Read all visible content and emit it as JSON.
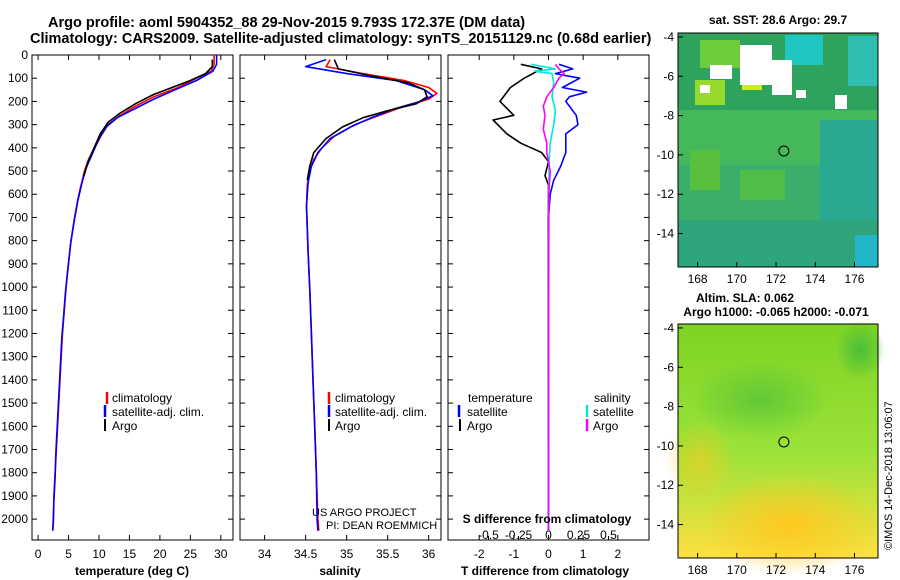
{
  "header": {
    "title_line1": "Argo profile: aoml 5904352_88 29-Nov-2015 9.793S 172.37E (DM data)",
    "title_line2": "Climatology: CARS2009. Satellite-adjusted climatology: synTS_20151129.nc (0.68d earlier)"
  },
  "credits": {
    "project": "US ARGO PROJECT",
    "pi": "PI: DEAN ROEMMICH",
    "imos": "©IMOS 14-Dec-2018 13:06:07"
  },
  "colors": {
    "climatology": "#ff0000",
    "satellite": "#0000ff",
    "argo": "#000000",
    "sal_satellite": "#00e5e5",
    "sal_argo": "#ff00ff"
  },
  "chart_data": [
    {
      "type": "line",
      "title": "",
      "xlabel": "temperature (deg C)",
      "ylabel": "",
      "xlim": [
        -1,
        32
      ],
      "ylim": [
        0,
        2090
      ],
      "x_ticks": [
        0,
        5,
        10,
        15,
        20,
        25,
        30
      ],
      "y_ticks": [
        0,
        100,
        200,
        300,
        400,
        500,
        600,
        700,
        800,
        900,
        1000,
        1100,
        1200,
        1300,
        1400,
        1500,
        1600,
        1700,
        1800,
        1900,
        2000
      ],
      "legend": [
        "climatology",
        "satellite-adj. clim.",
        "Argo"
      ],
      "series": [
        {
          "name": "climatology",
          "color": "#ff0000",
          "points": [
            [
              28.9,
              0
            ],
            [
              28.9,
              40
            ],
            [
              28.4,
              70
            ],
            [
              26,
              100
            ],
            [
              23,
              140
            ],
            [
              19,
              180
            ],
            [
              16,
              220
            ],
            [
              13.5,
              260
            ],
            [
              11.5,
              300
            ],
            [
              10.3,
              350
            ],
            [
              9.3,
              400
            ],
            [
              8.3,
              450
            ],
            [
              7.6,
              500
            ],
            [
              6.7,
              600
            ],
            [
              6,
              700
            ],
            [
              5.4,
              800
            ],
            [
              5,
              900
            ],
            [
              4.6,
              1000
            ],
            [
              4.3,
              1100
            ],
            [
              4,
              1200
            ],
            [
              3.8,
              1300
            ],
            [
              3.6,
              1400
            ],
            [
              3.4,
              1500
            ],
            [
              3.2,
              1600
            ],
            [
              3,
              1700
            ],
            [
              2.8,
              1800
            ],
            [
              2.6,
              1900
            ],
            [
              2.5,
              2000
            ],
            [
              2.4,
              2050
            ]
          ]
        },
        {
          "name": "satellite",
          "color": "#0000ff",
          "points": [
            [
              29.3,
              0
            ],
            [
              29.3,
              40
            ],
            [
              28.7,
              70
            ],
            [
              26,
              110
            ],
            [
              22.5,
              150
            ],
            [
              19,
              190
            ],
            [
              16,
              230
            ],
            [
              13,
              270
            ],
            [
              11.2,
              310
            ],
            [
              10,
              360
            ],
            [
              9,
              420
            ],
            [
              8,
              480
            ],
            [
              7.3,
              540
            ],
            [
              6.5,
              630
            ],
            [
              5.9,
              720
            ],
            [
              5.3,
              820
            ],
            [
              4.9,
              920
            ],
            [
              4.5,
              1020
            ],
            [
              4.2,
              1120
            ],
            [
              3.9,
              1220
            ],
            [
              3.7,
              1320
            ],
            [
              3.5,
              1420
            ],
            [
              3.3,
              1520
            ],
            [
              3.1,
              1620
            ],
            [
              2.9,
              1720
            ],
            [
              2.8,
              1820
            ],
            [
              2.6,
              1920
            ],
            [
              2.5,
              2020
            ],
            [
              2.4,
              2050
            ]
          ]
        },
        {
          "name": "Argo",
          "color": "#000000",
          "points": [
            [
              28.6,
              20
            ],
            [
              28.6,
              50
            ],
            [
              27.5,
              80
            ],
            [
              25,
              110
            ],
            [
              22,
              140
            ],
            [
              19,
              170
            ],
            [
              16,
              210
            ],
            [
              13.5,
              250
            ],
            [
              11.5,
              290
            ],
            [
              10.2,
              340
            ],
            [
              9.2,
              400
            ],
            [
              8.2,
              460
            ],
            [
              7.5,
              520
            ]
          ]
        }
      ]
    },
    {
      "type": "line",
      "title": "",
      "xlabel": "salinity",
      "ylabel": "",
      "xlim": [
        33.7,
        36.15
      ],
      "ylim": [
        0,
        2090
      ],
      "x_ticks": [
        34,
        34.5,
        35,
        35.5,
        36
      ],
      "x_tick_labels": [
        "34",
        "34.5",
        "35",
        "35.5",
        "36"
      ],
      "legend": [
        "climatology",
        "satellite-adj. clim.",
        "Argo"
      ],
      "series": [
        {
          "name": "climatology",
          "color": "#ff0000",
          "points": [
            [
              34.8,
              20
            ],
            [
              34.75,
              50
            ],
            [
              35.2,
              80
            ],
            [
              35.7,
              110
            ],
            [
              36.0,
              140
            ],
            [
              36.1,
              165
            ],
            [
              36.0,
              190
            ],
            [
              35.7,
              220
            ],
            [
              35.4,
              260
            ],
            [
              35.1,
              300
            ],
            [
              34.85,
              350
            ],
            [
              34.7,
              400
            ],
            [
              34.6,
              450
            ],
            [
              34.55,
              500
            ],
            [
              34.52,
              560
            ],
            [
              34.51,
              650
            ],
            [
              34.52,
              750
            ],
            [
              34.53,
              850
            ],
            [
              34.55,
              1000
            ],
            [
              34.57,
              1200
            ],
            [
              34.59,
              1400
            ],
            [
              34.61,
              1600
            ],
            [
              34.63,
              1800
            ],
            [
              34.65,
              2000
            ],
            [
              34.66,
              2050
            ]
          ]
        },
        {
          "name": "satellite",
          "color": "#0000ff",
          "points": [
            [
              34.75,
              20
            ],
            [
              34.5,
              50
            ],
            [
              35.0,
              80
            ],
            [
              35.6,
              110
            ],
            [
              35.95,
              150
            ],
            [
              36.05,
              175
            ],
            [
              35.9,
              200
            ],
            [
              35.6,
              230
            ],
            [
              35.3,
              270
            ],
            [
              35.05,
              310
            ],
            [
              34.8,
              360
            ],
            [
              34.65,
              420
            ],
            [
              34.57,
              480
            ],
            [
              34.53,
              550
            ],
            [
              34.51,
              650
            ],
            [
              34.52,
              750
            ],
            [
              34.53,
              850
            ],
            [
              34.55,
              1000
            ],
            [
              34.57,
              1200
            ],
            [
              34.59,
              1400
            ],
            [
              34.61,
              1600
            ],
            [
              34.63,
              1800
            ],
            [
              34.64,
              2000
            ],
            [
              34.65,
              2050
            ]
          ]
        },
        {
          "name": "Argo",
          "color": "#000000",
          "points": [
            [
              34.85,
              20
            ],
            [
              34.9,
              60
            ],
            [
              35.3,
              90
            ],
            [
              35.75,
              120
            ],
            [
              35.95,
              150
            ],
            [
              35.98,
              180
            ],
            [
              35.85,
              210
            ],
            [
              35.5,
              240
            ],
            [
              35.2,
              270
            ],
            [
              34.95,
              310
            ],
            [
              34.75,
              360
            ],
            [
              34.6,
              420
            ],
            [
              34.55,
              480
            ],
            [
              34.52,
              540
            ]
          ]
        }
      ]
    },
    {
      "type": "line",
      "title": "",
      "xlabel": "T difference from climatology",
      "xlabel_top": "S difference from climatology",
      "ylabel": "",
      "xlim": [
        -2.9,
        2.9
      ],
      "ylim": [
        0,
        2090
      ],
      "x_ticks": [
        -2,
        -1,
        0,
        1,
        2
      ],
      "x_tick_labels": [
        "-2",
        "-1",
        "0",
        "1",
        "2"
      ],
      "x_ticks_top": [
        -0.5,
        -0.25,
        0,
        0.25,
        0.5
      ],
      "x_tick_labels_top": [
        "-0.5",
        "-0.25",
        "0",
        "0.25",
        "0.5"
      ],
      "legend": [
        "temperature",
        "satellite",
        "Argo",
        "salinity",
        "satellite",
        "Argo"
      ],
      "series": [
        {
          "name": "T satellite - Argo",
          "color": "#0000ff",
          "points": [
            [
              0.3,
              40
            ],
            [
              0.7,
              60
            ],
            [
              0.2,
              80
            ],
            [
              0.9,
              100
            ],
            [
              0.4,
              140
            ],
            [
              1.1,
              160
            ],
            [
              0.6,
              180
            ],
            [
              0.5,
              200
            ],
            [
              0.8,
              260
            ],
            [
              0.85,
              300
            ],
            [
              0.5,
              340
            ],
            [
              0.5,
              420
            ],
            [
              0.35,
              480
            ],
            [
              0.15,
              540
            ],
            [
              0.05,
              600
            ],
            [
              0,
              700
            ],
            [
              0,
              2050
            ]
          ]
        },
        {
          "name": "T Argo - clim",
          "color": "#000000",
          "points": [
            [
              -0.8,
              40
            ],
            [
              -0.2,
              60
            ],
            [
              -0.7,
              100
            ],
            [
              -1.1,
              140
            ],
            [
              -1.4,
              200
            ],
            [
              -1.0,
              260
            ],
            [
              -1.6,
              280
            ],
            [
              -1.2,
              340
            ],
            [
              -0.8,
              380
            ],
            [
              -0.2,
              420
            ],
            [
              0,
              460
            ],
            [
              -0.1,
              520
            ],
            [
              0,
              560
            ],
            [
              0,
              2050
            ]
          ]
        },
        {
          "name": "S satellite - Argo",
          "color": "#00e5e5",
          "points": [
            [
              -0.5,
              40
            ],
            [
              0.2,
              60
            ],
            [
              -0.4,
              70
            ],
            [
              0.1,
              80
            ],
            [
              0.15,
              120
            ],
            [
              0.1,
              180
            ],
            [
              0.2,
              240
            ],
            [
              0.15,
              300
            ],
            [
              0.05,
              380
            ],
            [
              0.02,
              450
            ],
            [
              0.01,
              600
            ],
            [
              0,
              2050
            ]
          ]
        },
        {
          "name": "S Argo - clim",
          "color": "#ff00ff",
          "points": [
            [
              0.2,
              40
            ],
            [
              0.3,
              60
            ],
            [
              0.45,
              80
            ],
            [
              0.3,
              100
            ],
            [
              0.15,
              140
            ],
            [
              -0.05,
              180
            ],
            [
              -0.15,
              220
            ],
            [
              -0.1,
              260
            ],
            [
              -0.15,
              320
            ],
            [
              -0.05,
              380
            ],
            [
              -0.05,
              420
            ],
            [
              0.05,
              500
            ],
            [
              0.01,
              600
            ],
            [
              0,
              2050
            ]
          ]
        }
      ]
    },
    {
      "type": "heatmap",
      "title": "sat. SST: 28.6 Argo: 29.7",
      "xlim": [
        167,
        177.2
      ],
      "ylim": [
        -15.7,
        -3.8
      ],
      "x_tick_labels": [
        "168",
        "170",
        "172",
        "174",
        "176"
      ],
      "y_tick_labels": [
        "-4",
        "-6",
        "-8",
        "-10",
        "-12",
        "-14"
      ],
      "marker": [
        172.4,
        -9.8
      ]
    },
    {
      "type": "heatmap",
      "title_line1": "Altim. SLA: 0.062",
      "title_line2": "Argo h1000: -0.065 h2000: -0.071",
      "xlim": [
        167,
        177.2
      ],
      "ylim": [
        -15.7,
        -3.8
      ],
      "x_tick_labels": [
        "168",
        "170",
        "172",
        "174",
        "176"
      ],
      "y_tick_labels": [
        "-4",
        "-6",
        "-8",
        "-10",
        "-12",
        "-14"
      ],
      "marker": [
        172.4,
        -9.8
      ]
    }
  ]
}
